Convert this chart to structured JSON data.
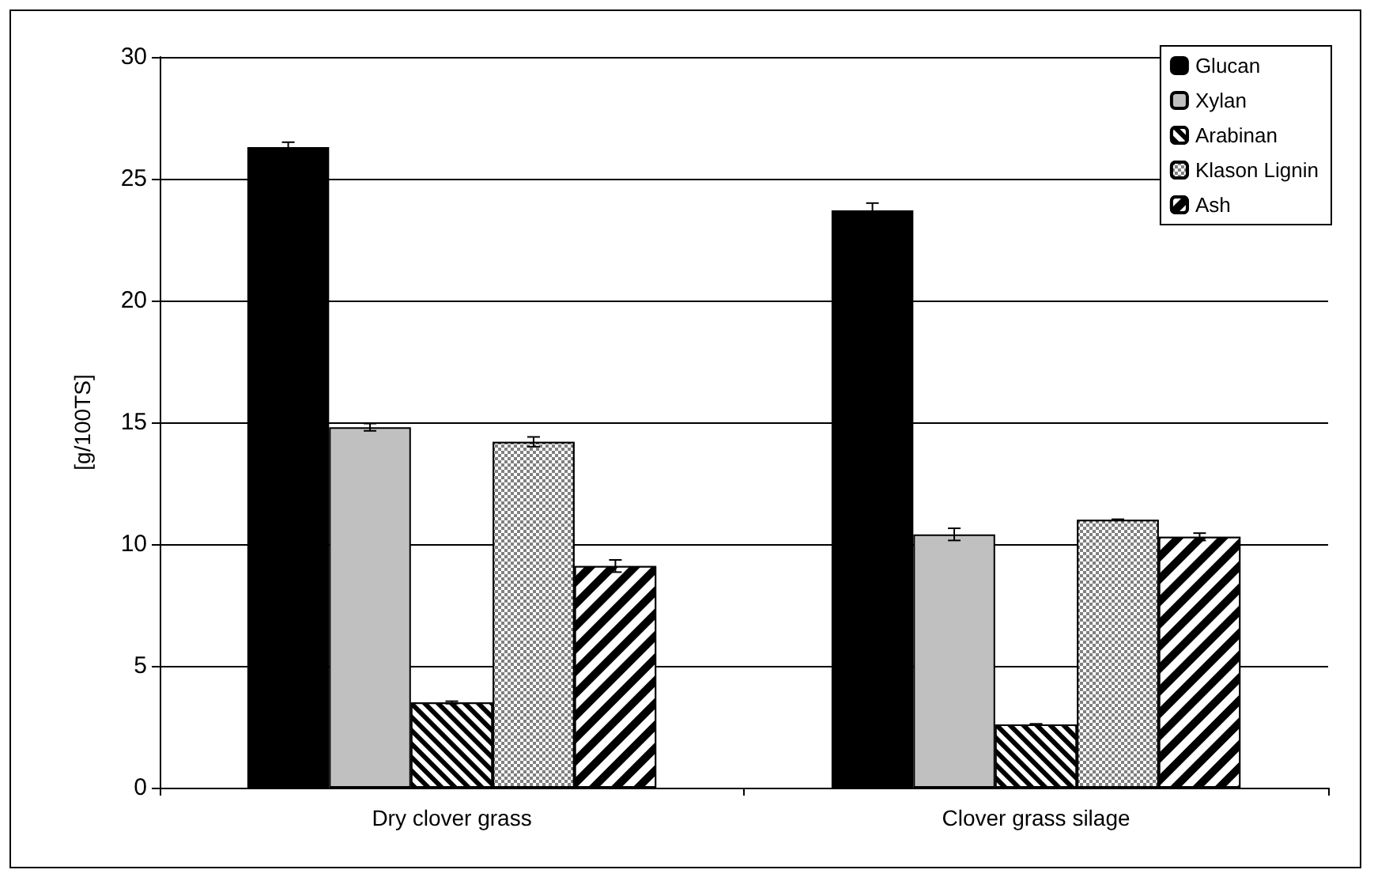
{
  "chart_data": {
    "type": "bar",
    "ylabel": "[g/100TS]",
    "categories": [
      "Dry clover grass",
      "Clover grass silage"
    ],
    "series": [
      {
        "name": "Glucan",
        "color": "#000000",
        "values": [
          26.3,
          23.7
        ],
        "errors": [
          0.2,
          0.3
        ]
      },
      {
        "name": "Xylan",
        "color": "#c0c0c0",
        "values": [
          14.8,
          10.4
        ],
        "errors": [
          0.15,
          0.25
        ]
      },
      {
        "name": "Arabinan",
        "color": "#000000",
        "values": [
          3.5,
          2.6
        ],
        "errors": [
          0.05,
          0.02
        ]
      },
      {
        "name": "Klason Lignin",
        "color": "#808080",
        "values": [
          14.2,
          11.0
        ],
        "errors": [
          0.2,
          0.02
        ]
      },
      {
        "name": "Ash",
        "color": "#000000",
        "values": [
          9.1,
          10.3
        ],
        "errors": [
          0.25,
          0.15
        ]
      }
    ],
    "ylim": [
      0,
      30
    ],
    "yticks": [
      0,
      5,
      10,
      15,
      20,
      25,
      30
    ],
    "grid": "y",
    "legend": "top right"
  }
}
